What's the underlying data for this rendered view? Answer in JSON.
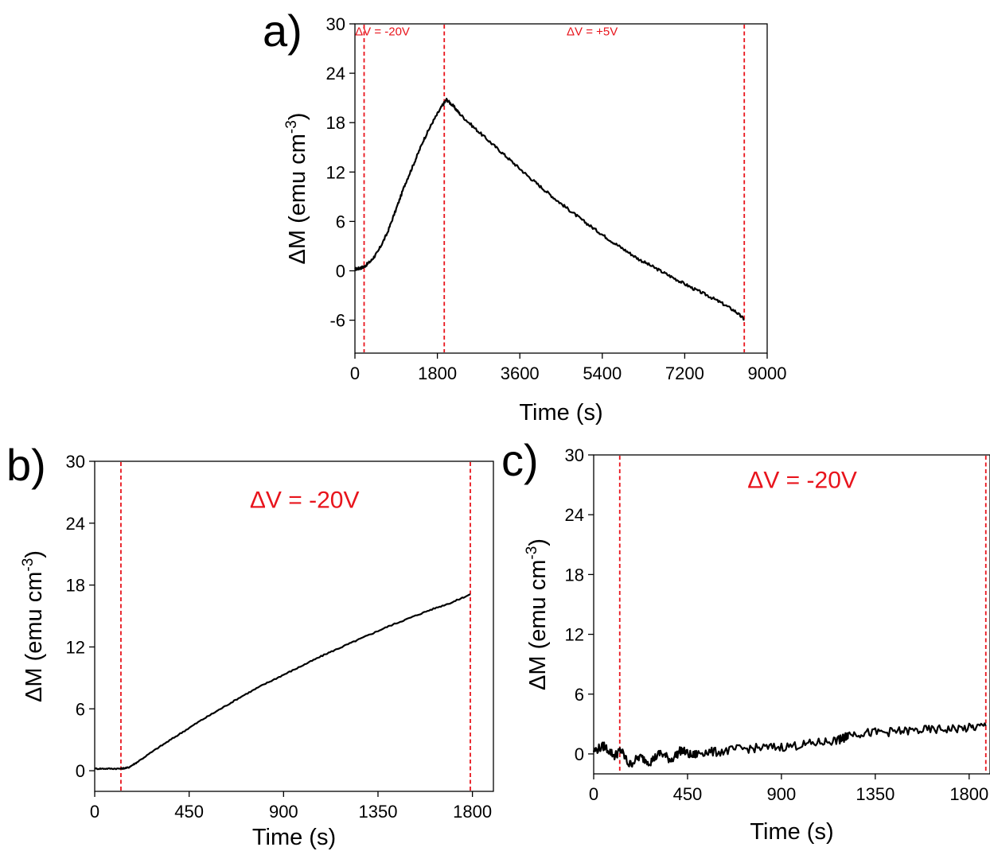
{
  "colors": {
    "marker_line": "#e8141c",
    "annotation": "#e8141c",
    "curve": "#000000",
    "axis": "#000000"
  },
  "chart_data": [
    {
      "panel": "a)",
      "type": "line",
      "xlabel": "Time (s)",
      "ylabel": "ΔM (emu cm",
      "ylabel_sup": "-3",
      "ylabel_close": ")",
      "xlim": [
        0,
        9000
      ],
      "ylim": [
        -10,
        30
      ],
      "xticks": [
        0,
        1800,
        3600,
        5400,
        7200,
        9000
      ],
      "yticks": [
        -6,
        0,
        6,
        12,
        18,
        24,
        30
      ],
      "grid": false,
      "legend": "none",
      "vlines": [
        200,
        1950,
        8500
      ],
      "annotations": [
        {
          "text": "ΔV = -20V",
          "x": 600,
          "y": 28.6
        },
        {
          "text": "ΔV = +5V",
          "x": 5180,
          "y": 28.6
        }
      ],
      "series": [
        {
          "x": [
            0,
            100,
            200,
            350,
            500,
            700,
            900,
            1100,
            1300,
            1500,
            1700,
            1900,
            2000,
            2150,
            2300,
            2600,
            2900,
            3200,
            3500,
            3800,
            4100,
            4400,
            4700,
            5000,
            5300,
            5600,
            5900,
            6200,
            6500,
            6800,
            7100,
            7400,
            7700,
            8000,
            8300,
            8500
          ],
          "y": [
            0.2,
            0.3,
            0.5,
            1.2,
            2.3,
            4.5,
            7.5,
            10.6,
            13.2,
            15.9,
            18.1,
            20.0,
            20.8,
            20.0,
            19.0,
            17.4,
            15.9,
            14.4,
            12.9,
            11.4,
            10.0,
            8.6,
            7.3,
            6.0,
            4.8,
            3.6,
            2.5,
            1.4,
            0.5,
            -0.4,
            -1.3,
            -2.2,
            -3.0,
            -3.9,
            -4.9,
            -5.9
          ]
        }
      ]
    },
    {
      "panel": "b)",
      "type": "line",
      "xlabel": "Time (s)",
      "ylabel": "ΔM (emu cm",
      "ylabel_sup": "-3",
      "ylabel_close": ")",
      "xlim": [
        0,
        1900
      ],
      "ylim": [
        -2,
        30
      ],
      "xticks": [
        0,
        450,
        900,
        1350,
        1800
      ],
      "yticks": [
        0,
        6,
        12,
        18,
        24,
        30
      ],
      "grid": false,
      "legend": "none",
      "vlines": [
        125,
        1790
      ],
      "annotations": [
        {
          "text": "ΔV = -20V",
          "x": 1000,
          "y": 25.5
        }
      ],
      "series": [
        {
          "x": [
            0,
            60,
            125,
            160,
            200,
            300,
            400,
            500,
            600,
            700,
            800,
            900,
            1000,
            1100,
            1200,
            1300,
            1400,
            1500,
            1600,
            1700,
            1790
          ],
          "y": [
            0.2,
            0.2,
            0.2,
            0.3,
            0.8,
            2.2,
            3.5,
            4.8,
            6.0,
            7.2,
            8.3,
            9.3,
            10.3,
            11.3,
            12.2,
            13.1,
            14.0,
            14.8,
            15.6,
            16.3,
            17.1
          ]
        }
      ]
    },
    {
      "panel": "c)",
      "type": "line",
      "xlabel": "Time (s)",
      "ylabel": "ΔM (emu cm",
      "ylabel_sup": "-3",
      "ylabel_close": ")",
      "xlim": [
        0,
        1900
      ],
      "ylim": [
        -2,
        30
      ],
      "xticks": [
        0,
        450,
        900,
        1350,
        1800
      ],
      "yticks": [
        0,
        6,
        12,
        18,
        24,
        30
      ],
      "grid": false,
      "legend": "none",
      "vlines": [
        125,
        1880
      ],
      "annotations": [
        {
          "text": "ΔV = -20V",
          "x": 1000,
          "y": 26.7
        }
      ],
      "series": [
        {
          "x": [
            0,
            50,
            100,
            130,
            170,
            220,
            270,
            320,
            370,
            420,
            470,
            520,
            600,
            700,
            800,
            900,
            1000,
            1100,
            1180,
            1200,
            1220,
            1300,
            1400,
            1500,
            1600,
            1700,
            1800,
            1880
          ],
          "y": [
            0.3,
            0.8,
            -0.2,
            0.4,
            -1.1,
            -0.3,
            -0.8,
            0.1,
            -0.6,
            0.4,
            -0.2,
            0.2,
            0.2,
            0.5,
            0.6,
            0.7,
            0.9,
            1.2,
            1.4,
            1.6,
            2.0,
            2.1,
            2.2,
            2.3,
            2.4,
            2.5,
            2.6,
            2.8
          ]
        }
      ]
    }
  ]
}
